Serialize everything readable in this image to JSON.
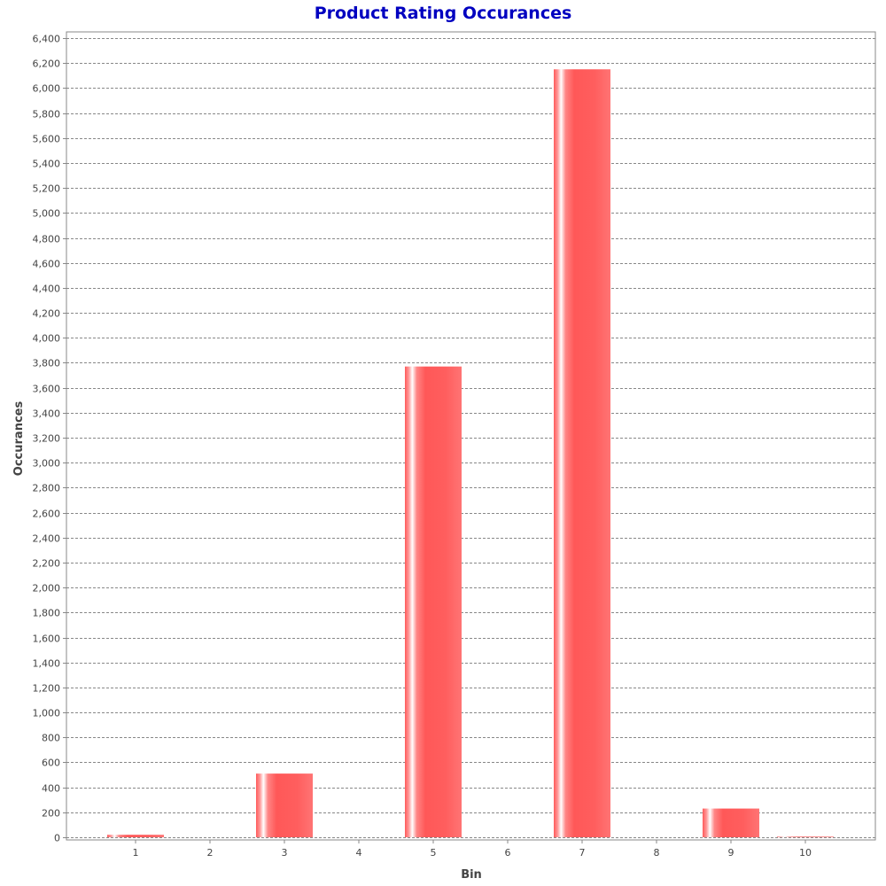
{
  "chart_data": {
    "type": "bar",
    "title": "Product Rating Occurances",
    "xlabel": "Bin",
    "ylabel": "Occurances",
    "categories": [
      "1",
      "2",
      "3",
      "4",
      "5",
      "6",
      "7",
      "8",
      "9",
      "10"
    ],
    "values": [
      20,
      0,
      510,
      0,
      3770,
      0,
      6150,
      0,
      230,
      5
    ],
    "ylim": [
      0,
      6450
    ],
    "yticks": [
      0,
      200,
      400,
      600,
      800,
      1000,
      1200,
      1400,
      1600,
      1800,
      2000,
      2200,
      2400,
      2600,
      2800,
      3000,
      3200,
      3400,
      3600,
      3800,
      4000,
      4200,
      4400,
      4600,
      4800,
      5000,
      5200,
      5400,
      5600,
      5800,
      6000,
      6200,
      6400
    ],
    "ytick_labels": [
      "0",
      "200",
      "400",
      "600",
      "800",
      "1,000",
      "1,200",
      "1,400",
      "1,600",
      "1,800",
      "2,000",
      "2,200",
      "2,400",
      "2,600",
      "2,800",
      "3,000",
      "3,200",
      "3,400",
      "3,600",
      "3,800",
      "4,000",
      "4,200",
      "4,400",
      "4,600",
      "4,800",
      "5,000",
      "5,200",
      "5,400",
      "5,600",
      "5,800",
      "6,000",
      "6,200",
      "6,400"
    ],
    "grid": true,
    "legend": "none",
    "colors": {
      "bar": "#ff5555",
      "bar_highlight": "#ffffff",
      "title": "#0000c0",
      "grid": "#888888",
      "frame": "#888888",
      "text": "#444444"
    }
  }
}
